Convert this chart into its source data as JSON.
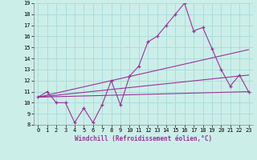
{
  "xlabel": "Windchill (Refroidissement éolien,°C)",
  "background_color": "#cceee8",
  "grid_color": "#aadddd",
  "line_color": "#993399",
  "xlim": [
    -0.5,
    23.5
  ],
  "ylim": [
    8,
    19
  ],
  "xticks": [
    0,
    1,
    2,
    3,
    4,
    5,
    6,
    7,
    8,
    9,
    10,
    11,
    12,
    13,
    14,
    15,
    16,
    17,
    18,
    19,
    20,
    21,
    22,
    23
  ],
  "yticks": [
    8,
    9,
    10,
    11,
    12,
    13,
    14,
    15,
    16,
    17,
    18,
    19
  ],
  "series1_x": [
    0,
    1,
    2,
    3,
    4,
    5,
    6,
    7,
    8,
    9,
    10,
    11,
    12,
    13,
    14,
    15,
    16,
    17,
    18,
    19,
    20,
    21,
    22,
    23
  ],
  "series1_y": [
    10.5,
    11.0,
    10.0,
    10.0,
    8.2,
    9.5,
    8.2,
    9.8,
    12.0,
    9.8,
    12.4,
    13.3,
    15.5,
    16.0,
    17.0,
    18.0,
    19.0,
    16.5,
    16.8,
    14.9,
    13.0,
    11.5,
    12.5,
    11.0
  ],
  "series2_x": [
    0,
    23
  ],
  "series2_y": [
    10.5,
    14.8
  ],
  "series3_x": [
    0,
    23
  ],
  "series3_y": [
    10.5,
    12.5
  ],
  "series4_x": [
    0,
    23
  ],
  "series4_y": [
    10.5,
    11.0
  ],
  "tick_fontsize": 5.0,
  "xlabel_fontsize": 5.5
}
